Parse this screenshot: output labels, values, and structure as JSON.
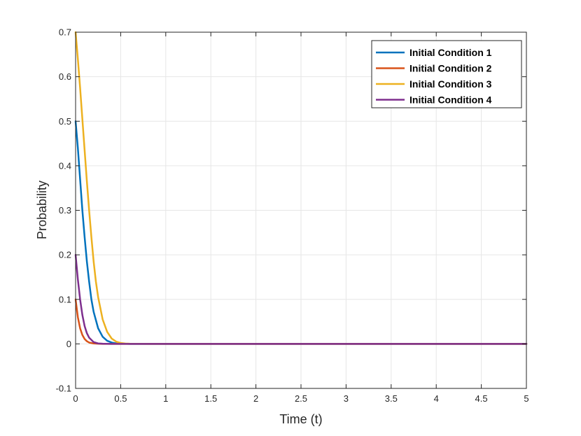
{
  "chart_data": {
    "type": "line",
    "title": "",
    "xlabel": "Time (t)",
    "ylabel": "Probability",
    "xlim": [
      0,
      5
    ],
    "ylim": [
      -0.1,
      0.7
    ],
    "xticks": [
      0,
      0.5,
      1,
      1.5,
      2,
      2.5,
      3,
      3.5,
      4,
      4.5,
      5
    ],
    "xtick_labels": [
      "0",
      "0.5",
      "1",
      "1.5",
      "2",
      "2.5",
      "3",
      "3.5",
      "4",
      "4.5",
      "5"
    ],
    "yticks": [
      -0.1,
      0,
      0.1,
      0.2,
      0.3,
      0.4,
      0.5,
      0.6,
      0.7
    ],
    "ytick_labels": [
      "-0.1",
      "0",
      "0.1",
      "0.2",
      "0.3",
      "0.4",
      "0.5",
      "0.6",
      "0.7"
    ],
    "grid": true,
    "legend_position": "top-right",
    "series": [
      {
        "name": "Initial Condition 1",
        "color": "#0072BD",
        "x": [
          0,
          0.025,
          0.05,
          0.075,
          0.1,
          0.125,
          0.15,
          0.175,
          0.2,
          0.25,
          0.3,
          0.35,
          0.4,
          0.45,
          0.5,
          0.6,
          0.8,
          1,
          2,
          3,
          4,
          5
        ],
        "y": [
          0.5,
          0.44,
          0.37,
          0.3,
          0.24,
          0.185,
          0.14,
          0.1,
          0.072,
          0.035,
          0.016,
          0.007,
          0.003,
          0.001,
          0.0005,
          0,
          0,
          0,
          0,
          0,
          0,
          0
        ]
      },
      {
        "name": "Initial Condition 2",
        "color": "#D95319",
        "x": [
          0,
          0.025,
          0.05,
          0.075,
          0.1,
          0.125,
          0.15,
          0.2,
          0.25,
          0.3,
          0.4,
          0.5,
          1,
          2,
          3,
          4,
          5
        ],
        "y": [
          0.1,
          0.06,
          0.035,
          0.02,
          0.011,
          0.006,
          0.003,
          0.001,
          0.0003,
          0,
          0,
          0,
          0,
          0,
          0,
          0,
          0
        ]
      },
      {
        "name": "Initial Condition 3",
        "color": "#EDB120",
        "x": [
          0,
          0.025,
          0.05,
          0.075,
          0.1,
          0.125,
          0.15,
          0.175,
          0.2,
          0.225,
          0.25,
          0.3,
          0.35,
          0.4,
          0.45,
          0.5,
          0.55,
          0.6,
          0.8,
          1,
          2,
          3,
          4,
          5
        ],
        "y": [
          0.7,
          0.64,
          0.575,
          0.505,
          0.435,
          0.365,
          0.3,
          0.24,
          0.185,
          0.14,
          0.105,
          0.055,
          0.027,
          0.012,
          0.005,
          0.002,
          0.0008,
          0.0003,
          0,
          0,
          0,
          0,
          0,
          0
        ]
      },
      {
        "name": "Initial Condition 4",
        "color": "#7E2F8E",
        "x": [
          0,
          0.025,
          0.05,
          0.075,
          0.1,
          0.125,
          0.15,
          0.2,
          0.25,
          0.3,
          0.4,
          0.5,
          1,
          2,
          3,
          4,
          5
        ],
        "y": [
          0.2,
          0.145,
          0.1,
          0.065,
          0.04,
          0.024,
          0.014,
          0.004,
          0.001,
          0.0003,
          0,
          0,
          0,
          0,
          0,
          0,
          0
        ]
      }
    ]
  }
}
